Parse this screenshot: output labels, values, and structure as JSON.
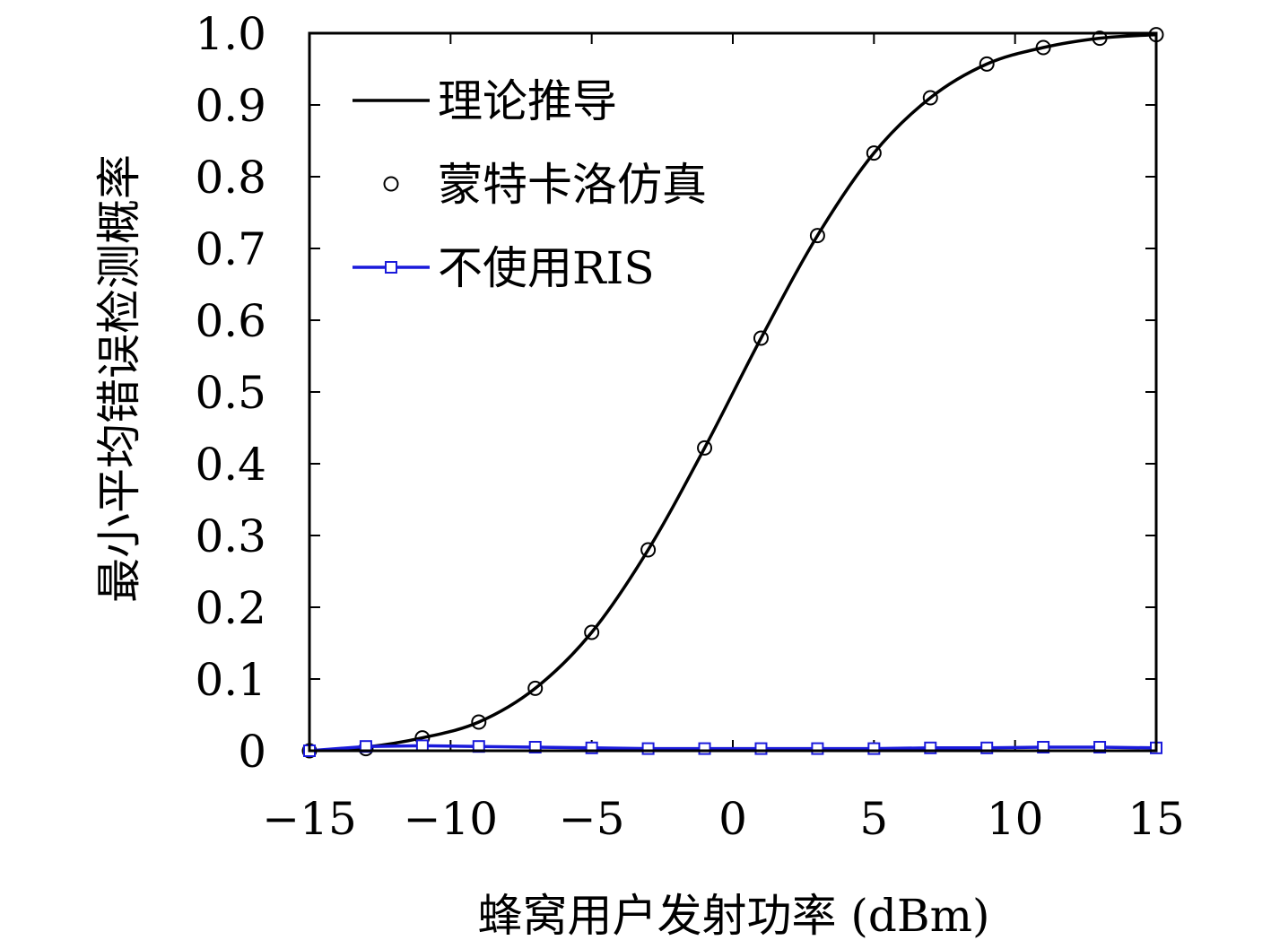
{
  "chart_data": {
    "type": "line",
    "xlabel": "蜂窝用户发射功率 (dBm)",
    "ylabel": "最小平均错误检测概率",
    "xlim": [
      -15,
      15
    ],
    "ylim": [
      0,
      1.0
    ],
    "xticks": [
      -15,
      -10,
      -5,
      0,
      5,
      10,
      15
    ],
    "xtick_labels": [
      "−15",
      "−10",
      "−5",
      "0",
      "5",
      "10",
      "15"
    ],
    "yticks": [
      0,
      0.1,
      0.2,
      0.3,
      0.4,
      0.5,
      0.6,
      0.7,
      0.8,
      0.9,
      1.0
    ],
    "ytick_labels": [
      "0",
      "0.1",
      "0.2",
      "0.3",
      "0.4",
      "0.5",
      "0.6",
      "0.7",
      "0.8",
      "0.9",
      "1.0"
    ],
    "grid": false,
    "legend_position": "top-left",
    "series": [
      {
        "name": "理论推导",
        "style": "line",
        "color": "#000000",
        "x": [
          -15,
          -13,
          -11,
          -9,
          -7,
          -5,
          -3,
          -1,
          1,
          3,
          5,
          7,
          9,
          11,
          13,
          15
        ],
        "y": [
          0.0,
          0.005,
          0.018,
          0.04,
          0.087,
          0.165,
          0.28,
          0.422,
          0.575,
          0.718,
          0.833,
          0.91,
          0.957,
          0.98,
          0.993,
          0.998
        ]
      },
      {
        "name": "蒙特卡洛仿真",
        "style": "markers-circle",
        "color": "#000000",
        "x": [
          -15,
          -13,
          -11,
          -9,
          -7,
          -5,
          -3,
          -1,
          1,
          3,
          5,
          7,
          9,
          11,
          13,
          15
        ],
        "y": [
          0.0,
          0.003,
          0.018,
          0.04,
          0.087,
          0.165,
          0.28,
          0.422,
          0.575,
          0.718,
          0.833,
          0.91,
          0.957,
          0.98,
          0.993,
          0.998
        ]
      },
      {
        "name": "不使用RIS",
        "style": "line-markers-square",
        "color": "#1a1adb",
        "x": [
          -15,
          -13,
          -11,
          -9,
          -7,
          -5,
          -3,
          -1,
          1,
          3,
          5,
          7,
          9,
          11,
          13,
          15
        ],
        "y": [
          0.0,
          0.006,
          0.007,
          0.006,
          0.005,
          0.004,
          0.003,
          0.003,
          0.003,
          0.003,
          0.003,
          0.004,
          0.004,
          0.005,
          0.005,
          0.004
        ]
      }
    ]
  }
}
